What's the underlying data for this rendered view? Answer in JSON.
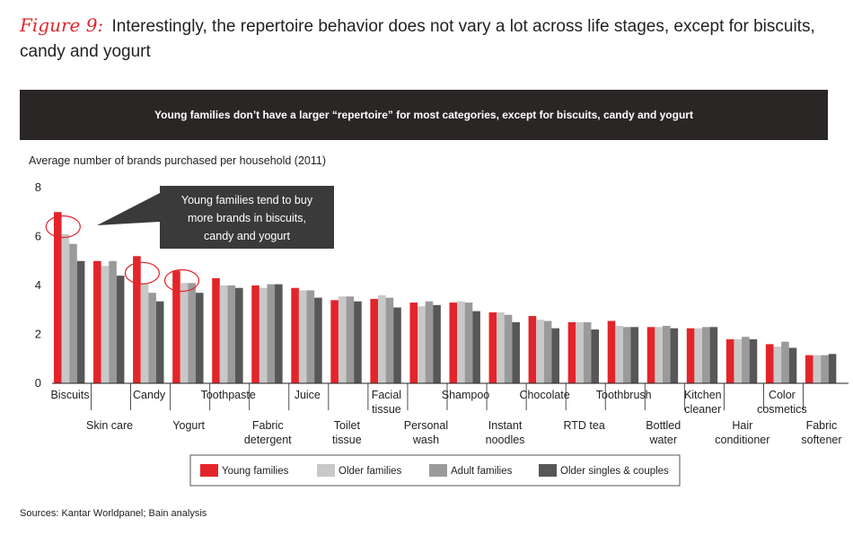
{
  "figure": {
    "label": "Figure 9:",
    "title": "Interestingly, the repertoire behavior does not vary a lot across life stages, except for biscuits, candy and yogurt"
  },
  "banner": "Young families don’t have a larger “repertoire” for most categories, except for biscuits, candy and yogurt",
  "axis_caption": "Average number of brands purchased per household (2011)",
  "callout": {
    "lines": [
      "Young families tend to buy",
      "more brands in biscuits,",
      "candy and yogurt"
    ]
  },
  "sources": "Sources: Kantar Worldpanel; Bain analysis",
  "colors": {
    "young": "#e3242b",
    "older": "#c8c8c8",
    "adult": "#9a9a9a",
    "singles": "#575757",
    "banner": "#2b2626",
    "callout": "#3a3a3a"
  },
  "chart_data": {
    "type": "bar",
    "title": "Young families don’t have a larger “repertoire” for most categories, except for biscuits, candy and yogurt",
    "ylabel": "Average number of brands purchased per household (2011)",
    "xlabel": "",
    "ylim": [
      0,
      8
    ],
    "yticks": [
      0,
      2,
      4,
      6,
      8
    ],
    "grid": false,
    "legend_position": "bottom",
    "categories": [
      [
        "Biscuits"
      ],
      [
        "Skin care"
      ],
      [
        "Candy"
      ],
      [
        "Yogurt"
      ],
      [
        "Toothpaste"
      ],
      [
        "Fabric",
        "detergent"
      ],
      [
        "Juice"
      ],
      [
        "Toilet",
        "tissue"
      ],
      [
        "Facial",
        "tissue"
      ],
      [
        "Personal",
        "wash"
      ],
      [
        "Shampoo"
      ],
      [
        "Instant",
        "noodles"
      ],
      [
        "Chocolate"
      ],
      [
        "RTD tea"
      ],
      [
        "Toothbrush"
      ],
      [
        "Bottled",
        "water"
      ],
      [
        "Kitchen",
        "cleaner"
      ],
      [
        "Hair",
        "conditioner"
      ],
      [
        "Color",
        "cosmetics"
      ],
      [
        "Fabric",
        "softener"
      ]
    ],
    "category_rows": [
      "upper",
      "lower",
      "upper",
      "lower",
      "upper",
      "lower",
      "upper",
      "lower",
      "upper",
      "lower",
      "upper",
      "lower",
      "upper",
      "lower",
      "upper",
      "lower",
      "upper",
      "lower",
      "upper",
      "lower"
    ],
    "series": [
      {
        "name": "Young families",
        "key": "young",
        "values": [
          7.0,
          5.0,
          5.2,
          4.6,
          4.3,
          4.0,
          3.9,
          3.4,
          3.45,
          3.3,
          3.3,
          2.9,
          2.75,
          2.5,
          2.55,
          2.3,
          2.25,
          1.8,
          1.6,
          1.15
        ]
      },
      {
        "name": "Older families",
        "key": "older",
        "values": [
          6.1,
          4.8,
          4.1,
          4.1,
          4.0,
          3.9,
          3.8,
          3.55,
          3.6,
          3.15,
          3.35,
          2.9,
          2.6,
          2.5,
          2.35,
          2.3,
          2.25,
          1.8,
          1.5,
          1.15
        ]
      },
      {
        "name": "Adult families",
        "key": "adult",
        "values": [
          5.7,
          5.0,
          3.7,
          4.1,
          4.0,
          4.05,
          3.8,
          3.55,
          3.5,
          3.35,
          3.3,
          2.8,
          2.55,
          2.5,
          2.3,
          2.35,
          2.3,
          1.9,
          1.7,
          1.15
        ]
      },
      {
        "name": "Older singles & couples",
        "key": "singles",
        "values": [
          5.0,
          4.4,
          3.35,
          3.7,
          3.9,
          4.05,
          3.5,
          3.35,
          3.1,
          3.2,
          2.95,
          2.5,
          2.25,
          2.2,
          2.3,
          2.25,
          2.3,
          1.8,
          1.45,
          1.2
        ]
      }
    ],
    "annotations": [
      {
        "type": "circle",
        "category": "Biscuits"
      },
      {
        "type": "circle",
        "category": "Candy"
      },
      {
        "type": "circle",
        "category": "Yogurt"
      }
    ]
  }
}
